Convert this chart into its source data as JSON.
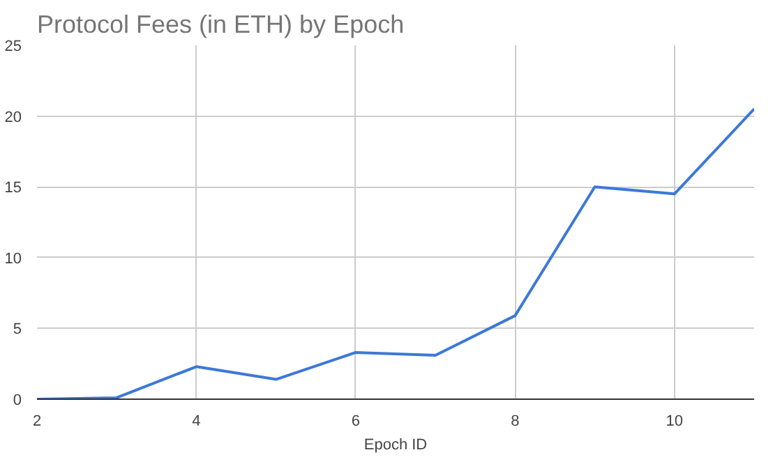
{
  "chart_data": {
    "type": "line",
    "title": "Protocol Fees (in ETH) by Epoch",
    "xlabel": "Epoch ID",
    "x": [
      2,
      3,
      4,
      5,
      6,
      7,
      8,
      9,
      10,
      11
    ],
    "series": [
      {
        "color": "#3c78d8",
        "values": [
          0,
          0.1,
          2.3,
          1.4,
          3.3,
          3.1,
          5.9,
          15,
          14.5,
          20.5
        ]
      }
    ],
    "xlim": [
      2,
      11
    ],
    "xticks": [
      2,
      4,
      6,
      8,
      10
    ],
    "ylim": [
      0,
      25
    ],
    "yticks": [
      0,
      5,
      10,
      15,
      20,
      25
    ],
    "grid": true
  }
}
